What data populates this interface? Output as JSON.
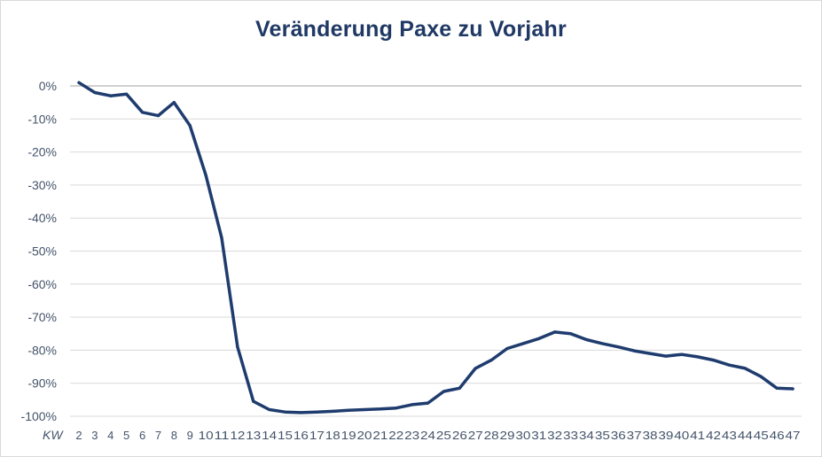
{
  "chart_data": {
    "type": "line",
    "title": "Veränderung Paxe zu Vorjahr",
    "xlabel": "KW",
    "ylabel": "",
    "ylim": [
      -100,
      0
    ],
    "y_tick_step": 10,
    "y_tick_labels": [
      "0%",
      "-10%",
      "-20%",
      "-30%",
      "-40%",
      "-50%",
      "-60%",
      "-70%",
      "-80%",
      "-90%",
      "-100%"
    ],
    "grid": true,
    "legend": "none",
    "line_color": "#1f3c6e",
    "categories": [
      2,
      3,
      4,
      5,
      6,
      7,
      8,
      9,
      10,
      11,
      12,
      13,
      14,
      15,
      16,
      17,
      18,
      19,
      20,
      21,
      22,
      23,
      24,
      25,
      26,
      27,
      28,
      29,
      30,
      31,
      32,
      33,
      34,
      35,
      36,
      37,
      38,
      39,
      40,
      41,
      42,
      43,
      44,
      45,
      46,
      47
    ],
    "series": [
      {
        "values": [
          1,
          -2,
          -3,
          -2.5,
          -8,
          -9,
          -5,
          -12,
          -27,
          -46,
          -79,
          -95.5,
          -98,
          -98.7,
          -98.9,
          -98.7,
          -98.5,
          -98.2,
          -98,
          -97.8,
          -97.5,
          -96.5,
          -96,
          -92.5,
          -91.5,
          -85.5,
          -83,
          -79.5,
          -78,
          -76.5,
          -74.5,
          -75,
          -76.8,
          -78,
          -79,
          -80.2,
          -81,
          -81.8,
          -81.3,
          -82,
          -83,
          -84.5,
          -85.5,
          -88,
          -91.5,
          -91.7
        ]
      }
    ]
  }
}
